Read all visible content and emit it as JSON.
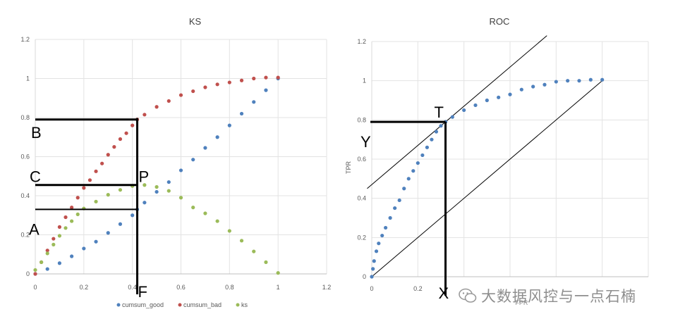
{
  "chart_data": [
    {
      "type": "scatter",
      "title": "KS",
      "xlim": [
        0,
        1.2
      ],
      "ylim": [
        0,
        1.2
      ],
      "x_ticks": [
        "0",
        "0.2",
        "0.4",
        "0.6",
        "0.8",
        "1",
        "1.2"
      ],
      "y_ticks": [
        "0",
        "0.2",
        "0.4",
        "0.6",
        "0.8",
        "1",
        "1.2"
      ],
      "grid": true,
      "legend_position": "bottom",
      "series": [
        {
          "name": "cumsum_good",
          "color": "#4f81bd",
          "points": [
            [
              0,
              0
            ],
            [
              0.05,
              0.025
            ],
            [
              0.1,
              0.055
            ],
            [
              0.15,
              0.09
            ],
            [
              0.2,
              0.13
            ],
            [
              0.25,
              0.165
            ],
            [
              0.3,
              0.21
            ],
            [
              0.35,
              0.255
            ],
            [
              0.4,
              0.3
            ],
            [
              0.42,
              0.33
            ],
            [
              0.45,
              0.365
            ],
            [
              0.5,
              0.42
            ],
            [
              0.55,
              0.47
            ],
            [
              0.6,
              0.53
            ],
            [
              0.65,
              0.585
            ],
            [
              0.7,
              0.645
            ],
            [
              0.75,
              0.7
            ],
            [
              0.8,
              0.76
            ],
            [
              0.85,
              0.82
            ],
            [
              0.9,
              0.88
            ],
            [
              0.95,
              0.94
            ],
            [
              1,
              1
            ]
          ]
        },
        {
          "name": "cumsum_bad",
          "color": "#c0504d",
          "points": [
            [
              0,
              0
            ],
            [
              0.025,
              0.06
            ],
            [
              0.05,
              0.12
            ],
            [
              0.075,
              0.18
            ],
            [
              0.1,
              0.24
            ],
            [
              0.125,
              0.29
            ],
            [
              0.15,
              0.34
            ],
            [
              0.175,
              0.39
            ],
            [
              0.2,
              0.44
            ],
            [
              0.225,
              0.48
            ],
            [
              0.25,
              0.525
            ],
            [
              0.275,
              0.565
            ],
            [
              0.3,
              0.61
            ],
            [
              0.325,
              0.65
            ],
            [
              0.35,
              0.69
            ],
            [
              0.375,
              0.72
            ],
            [
              0.4,
              0.76
            ],
            [
              0.42,
              0.79
            ],
            [
              0.45,
              0.815
            ],
            [
              0.5,
              0.855
            ],
            [
              0.55,
              0.885
            ],
            [
              0.6,
              0.915
            ],
            [
              0.65,
              0.935
            ],
            [
              0.7,
              0.955
            ],
            [
              0.75,
              0.97
            ],
            [
              0.8,
              0.98
            ],
            [
              0.85,
              0.99
            ],
            [
              0.9,
              1
            ],
            [
              0.95,
              1.005
            ],
            [
              1,
              1.005
            ]
          ]
        },
        {
          "name": "ks",
          "color": "#9bbb59",
          "points": [
            [
              0,
              0.02
            ],
            [
              0.025,
              0.06
            ],
            [
              0.05,
              0.105
            ],
            [
              0.075,
              0.15
            ],
            [
              0.1,
              0.195
            ],
            [
              0.125,
              0.235
            ],
            [
              0.15,
              0.27
            ],
            [
              0.175,
              0.305
            ],
            [
              0.2,
              0.335
            ],
            [
              0.25,
              0.37
            ],
            [
              0.3,
              0.405
            ],
            [
              0.35,
              0.43
            ],
            [
              0.4,
              0.45
            ],
            [
              0.45,
              0.455
            ],
            [
              0.5,
              0.445
            ],
            [
              0.55,
              0.425
            ],
            [
              0.6,
              0.39
            ],
            [
              0.65,
              0.34
            ],
            [
              0.7,
              0.31
            ],
            [
              0.75,
              0.27
            ],
            [
              0.8,
              0.22
            ],
            [
              0.85,
              0.17
            ],
            [
              0.9,
              0.115
            ],
            [
              0.95,
              0.06
            ],
            [
              1,
              0.005
            ]
          ]
        }
      ],
      "annotations": {
        "B": "B",
        "C": "C",
        "A": "A",
        "P": "P",
        "F": "F",
        "B_y": 0.79,
        "C_y": 0.455,
        "A_y": 0.33,
        "vertical_x": 0.42
      }
    },
    {
      "type": "scatter",
      "title": "ROC",
      "xlabel": "FPR",
      "ylabel": "TPR",
      "xlim": [
        0,
        1.2
      ],
      "ylim": [
        0,
        1.2
      ],
      "x_ticks": [
        "0",
        "0.2"
      ],
      "y_ticks": [
        "0",
        "0.2",
        "0.4",
        "0.6",
        "0.8",
        "1",
        "1.2"
      ],
      "grid": true,
      "series": [
        {
          "name": "ROC",
          "color": "#4f81bd",
          "points": [
            [
              0,
              0
            ],
            [
              0.005,
              0.04
            ],
            [
              0.01,
              0.08
            ],
            [
              0.02,
              0.13
            ],
            [
              0.03,
              0.17
            ],
            [
              0.045,
              0.21
            ],
            [
              0.06,
              0.25
            ],
            [
              0.08,
              0.3
            ],
            [
              0.1,
              0.35
            ],
            [
              0.12,
              0.39
            ],
            [
              0.14,
              0.45
            ],
            [
              0.16,
              0.5
            ],
            [
              0.18,
              0.54
            ],
            [
              0.2,
              0.58
            ],
            [
              0.22,
              0.62
            ],
            [
              0.24,
              0.66
            ],
            [
              0.26,
              0.7
            ],
            [
              0.28,
              0.74
            ],
            [
              0.3,
              0.77
            ],
            [
              0.32,
              0.79
            ],
            [
              0.35,
              0.815
            ],
            [
              0.4,
              0.85
            ],
            [
              0.45,
              0.875
            ],
            [
              0.5,
              0.9
            ],
            [
              0.55,
              0.915
            ],
            [
              0.6,
              0.93
            ],
            [
              0.65,
              0.955
            ],
            [
              0.7,
              0.97
            ],
            [
              0.75,
              0.98
            ],
            [
              0.8,
              0.995
            ],
            [
              0.85,
              1
            ],
            [
              0.9,
              1
            ],
            [
              0.95,
              1.005
            ],
            [
              1,
              1.005
            ]
          ]
        }
      ],
      "annotations": {
        "T": "T",
        "Y": "Y",
        "X": "X",
        "T_x": 0.32,
        "T_y": 0.79,
        "tangent_intercept": 0.47
      }
    }
  ],
  "watermark": {
    "text": "大数据风控与一点石楠",
    "icon": "wechat-icon"
  }
}
